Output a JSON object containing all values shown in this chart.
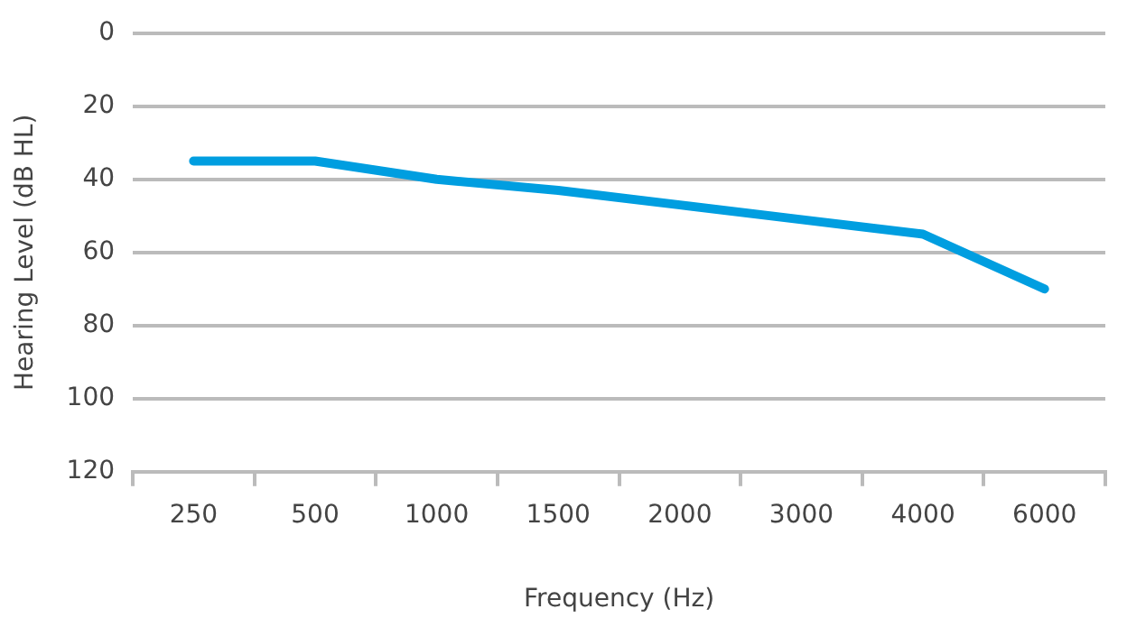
{
  "chart_data": {
    "type": "line",
    "xlabel": "Frequency (Hz)",
    "ylabel": "Hearing Level (dB HL)",
    "categories": [
      "250",
      "500",
      "1000",
      "1500",
      "2000",
      "3000",
      "4000",
      "6000"
    ],
    "series": [
      {
        "color": "#009ee0",
        "values": [
          35,
          35,
          40,
          43,
          47,
          51,
          55,
          70
        ]
      }
    ],
    "ylim": [
      120,
      0
    ],
    "yticks": [
      0,
      20,
      40,
      60,
      80,
      100,
      120
    ],
    "grid": "y",
    "legend": false,
    "marker": "none",
    "line_style": "solid"
  }
}
